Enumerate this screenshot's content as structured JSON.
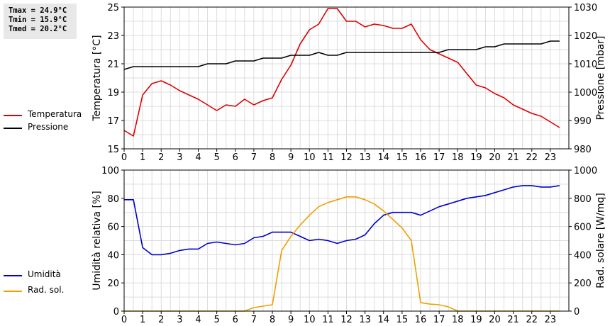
{
  "stats": {
    "tmax": "Tmax = 24.9°C",
    "tmin": "Tmin = 15.9°C",
    "tmed": "Tmed = 20.2°C"
  },
  "chart_data": [
    {
      "type": "line",
      "ylabel_left": "Temperatura [°C]",
      "ylabel_right": "Pressione [mbar]",
      "xlim": [
        0,
        24
      ],
      "ylim_left": [
        15,
        25
      ],
      "ylim_right": [
        980,
        1030
      ],
      "x_ticks": [
        "0",
        "1",
        "2",
        "3",
        "4",
        "5",
        "6",
        "7",
        "8",
        "9",
        "10",
        "11",
        "12",
        "13",
        "14",
        "15",
        "16",
        "17",
        "18",
        "19",
        "20",
        "21",
        "22",
        "23"
      ],
      "y_ticks_left": [
        "15",
        "17",
        "19",
        "21",
        "23",
        "25"
      ],
      "y_ticks_right": [
        "980",
        "990",
        "1000",
        "1010",
        "1020",
        "1030"
      ],
      "grid": true,
      "legend_placement": "left-outside",
      "series": [
        {
          "name": "Temperatura",
          "color": "#dd0000",
          "axis": "left",
          "x": [
            0,
            0.5,
            1,
            1.5,
            2,
            2.5,
            3,
            3.5,
            4,
            4.5,
            5,
            5.5,
            6,
            6.5,
            7,
            7.5,
            8,
            8.5,
            9,
            9.5,
            10,
            10.5,
            11,
            11.5,
            12,
            12.5,
            13,
            13.5,
            14,
            14.5,
            15,
            15.5,
            16,
            16.5,
            17,
            17.5,
            18,
            18.5,
            19,
            19.5,
            20,
            20.5,
            21,
            21.5,
            22,
            22.5,
            23,
            23.5
          ],
          "values": [
            16.3,
            15.9,
            18.8,
            19.6,
            19.8,
            19.5,
            19.1,
            18.8,
            18.5,
            18.1,
            17.7,
            18.1,
            18.0,
            18.5,
            18.1,
            18.4,
            18.6,
            19.9,
            20.9,
            22.4,
            23.4,
            23.8,
            24.9,
            24.9,
            24.0,
            24.0,
            23.6,
            23.8,
            23.7,
            23.5,
            23.5,
            23.8,
            22.7,
            22.0,
            21.7,
            21.4,
            21.1,
            20.3,
            19.5,
            19.3,
            18.9,
            18.6,
            18.1,
            17.8,
            17.5,
            17.3,
            16.9,
            16.5
          ]
        },
        {
          "name": "Pressione",
          "color": "#000000",
          "axis": "right",
          "x": [
            0,
            0.5,
            1,
            1.5,
            2,
            2.5,
            3,
            3.5,
            4,
            4.5,
            5,
            5.5,
            6,
            6.5,
            7,
            7.5,
            8,
            8.5,
            9,
            9.5,
            10,
            10.5,
            11,
            11.5,
            12,
            12.5,
            13,
            13.5,
            14,
            14.5,
            15,
            15.5,
            16,
            16.5,
            17,
            17.5,
            18,
            18.5,
            19,
            19.5,
            20,
            20.5,
            21,
            21.5,
            22,
            22.5,
            23,
            23.5
          ],
          "values": [
            1008,
            1009,
            1009,
            1009,
            1009,
            1009,
            1009,
            1009,
            1009,
            1010,
            1010,
            1010,
            1011,
            1011,
            1011,
            1012,
            1012,
            1012,
            1013,
            1013,
            1013,
            1014,
            1013,
            1013,
            1014,
            1014,
            1014,
            1014,
            1014,
            1014,
            1014,
            1014,
            1014,
            1014,
            1014,
            1015,
            1015,
            1015,
            1015,
            1016,
            1016,
            1017,
            1017,
            1017,
            1017,
            1017,
            1018,
            1018
          ]
        }
      ]
    },
    {
      "type": "line",
      "ylabel_left": "Umidità relativa [%]",
      "ylabel_right": "Rad. solare [W/mq]",
      "xlim": [
        0,
        24
      ],
      "ylim_left": [
        0,
        100
      ],
      "ylim_right": [
        0,
        1000
      ],
      "x_ticks": [
        "0",
        "1",
        "2",
        "3",
        "4",
        "5",
        "6",
        "7",
        "8",
        "9",
        "10",
        "11",
        "12",
        "13",
        "14",
        "15",
        "16",
        "17",
        "18",
        "19",
        "20",
        "21",
        "22",
        "23"
      ],
      "y_ticks_left": [
        "0",
        "20",
        "40",
        "60",
        "80",
        "100"
      ],
      "y_ticks_right": [
        "0",
        "200",
        "400",
        "600",
        "800",
        "1000"
      ],
      "grid": true,
      "legend_placement": "left-outside",
      "series": [
        {
          "name": "Umidità",
          "color": "#0000cc",
          "axis": "left",
          "x": [
            0,
            0.5,
            1,
            1.5,
            2,
            2.5,
            3,
            3.5,
            4,
            4.5,
            5,
            5.5,
            6,
            6.5,
            7,
            7.5,
            8,
            8.5,
            9,
            9.5,
            10,
            10.5,
            11,
            11.5,
            12,
            12.5,
            13,
            13.5,
            14,
            14.5,
            15,
            15.5,
            16,
            16.5,
            17,
            17.5,
            18,
            18.5,
            19,
            19.5,
            20,
            20.5,
            21,
            21.5,
            22,
            22.5,
            23,
            23.5
          ],
          "values": [
            79,
            79,
            45,
            40,
            40,
            41,
            43,
            44,
            44,
            48,
            49,
            48,
            47,
            48,
            52,
            53,
            56,
            56,
            56,
            53,
            50,
            51,
            50,
            48,
            50,
            51,
            54,
            62,
            68,
            70,
            70,
            70,
            68,
            71,
            74,
            76,
            78,
            80,
            81,
            82,
            84,
            86,
            88,
            89,
            89,
            88,
            88,
            89
          ]
        },
        {
          "name": "Rad. sol.",
          "color": "#f0a000",
          "axis": "right",
          "x": [
            0,
            0.5,
            1,
            1.5,
            2,
            2.5,
            3,
            3.5,
            4,
            4.5,
            5,
            5.5,
            6,
            6.5,
            7,
            7.5,
            8,
            8.5,
            9,
            9.5,
            10,
            10.5,
            11,
            11.5,
            12,
            12.5,
            13,
            13.5,
            14,
            14.5,
            15,
            15.5,
            16,
            16.5,
            17,
            17.5,
            18,
            18.5,
            19,
            19.5,
            20,
            20.5,
            21,
            21.5,
            22,
            22.5,
            23,
            23.5
          ],
          "values": [
            0,
            0,
            0,
            0,
            0,
            0,
            0,
            0,
            0,
            0,
            0,
            0,
            0,
            0,
            25,
            35,
            45,
            430,
            530,
            610,
            680,
            740,
            770,
            790,
            810,
            810,
            790,
            760,
            710,
            650,
            590,
            500,
            60,
            50,
            45,
            30,
            0,
            0,
            0,
            0,
            0,
            0,
            0,
            0,
            0,
            0,
            0,
            0
          ]
        }
      ]
    }
  ]
}
